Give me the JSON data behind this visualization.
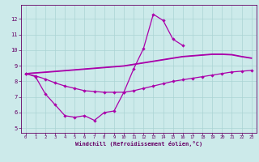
{
  "background_color": "#cceaea",
  "grid_color": "#aad4d4",
  "line_color": "#aa00aa",
  "spine_color": "#660066",
  "xlabel": "Windchill (Refroidissement éolien,°C)",
  "xlim": [
    -0.5,
    23.5
  ],
  "ylim": [
    4.7,
    12.9
  ],
  "yticks": [
    5,
    6,
    7,
    8,
    9,
    10,
    11,
    12
  ],
  "xticks": [
    0,
    1,
    2,
    3,
    4,
    5,
    6,
    7,
    8,
    9,
    10,
    11,
    12,
    13,
    14,
    15,
    16,
    17,
    18,
    19,
    20,
    21,
    22,
    23
  ],
  "figsize": [
    3.2,
    2.0
  ],
  "dpi": 100,
  "line_main_x": [
    0,
    1,
    2,
    3,
    4,
    5,
    6,
    7,
    8,
    9,
    10,
    11,
    12,
    13,
    14,
    15,
    16
  ],
  "line_main_y": [
    8.5,
    8.3,
    7.2,
    6.5,
    5.8,
    5.7,
    5.8,
    5.5,
    6.0,
    6.1,
    7.3,
    8.8,
    10.1,
    12.3,
    11.9,
    10.7,
    10.3
  ],
  "line_flat_x": [
    0,
    1,
    2,
    3,
    4,
    5,
    6,
    7,
    8,
    9,
    10,
    11,
    12,
    13,
    14,
    15,
    16,
    17,
    18,
    19,
    20,
    21,
    22,
    23
  ],
  "line_flat_y": [
    8.5,
    8.35,
    8.15,
    7.9,
    7.7,
    7.55,
    7.4,
    7.35,
    7.3,
    7.3,
    7.3,
    7.4,
    7.55,
    7.7,
    7.85,
    8.0,
    8.1,
    8.2,
    8.3,
    8.4,
    8.5,
    8.6,
    8.65,
    8.7
  ],
  "trend1_x": [
    0,
    1,
    2,
    3,
    4,
    5,
    6,
    7,
    8,
    9,
    10,
    11,
    12,
    13,
    14,
    15,
    16,
    17,
    18,
    19,
    20,
    21,
    22,
    23
  ],
  "trend1_y": [
    8.5,
    8.55,
    8.6,
    8.65,
    8.7,
    8.75,
    8.8,
    8.85,
    8.9,
    8.95,
    9.0,
    9.1,
    9.2,
    9.3,
    9.4,
    9.5,
    9.6,
    9.65,
    9.7,
    9.75,
    9.75,
    9.72,
    9.6,
    9.5
  ],
  "trend2_x": [
    0,
    1,
    2,
    3,
    4,
    5,
    6,
    7,
    8,
    9,
    10,
    11,
    12,
    13,
    14,
    15,
    16,
    17,
    18,
    19,
    20,
    21,
    22,
    23
  ],
  "trend2_y": [
    8.5,
    8.53,
    8.57,
    8.62,
    8.67,
    8.72,
    8.77,
    8.82,
    8.87,
    8.92,
    8.97,
    9.07,
    9.17,
    9.27,
    9.37,
    9.47,
    9.57,
    9.62,
    9.67,
    9.72,
    9.72,
    9.69,
    9.57,
    9.47
  ]
}
